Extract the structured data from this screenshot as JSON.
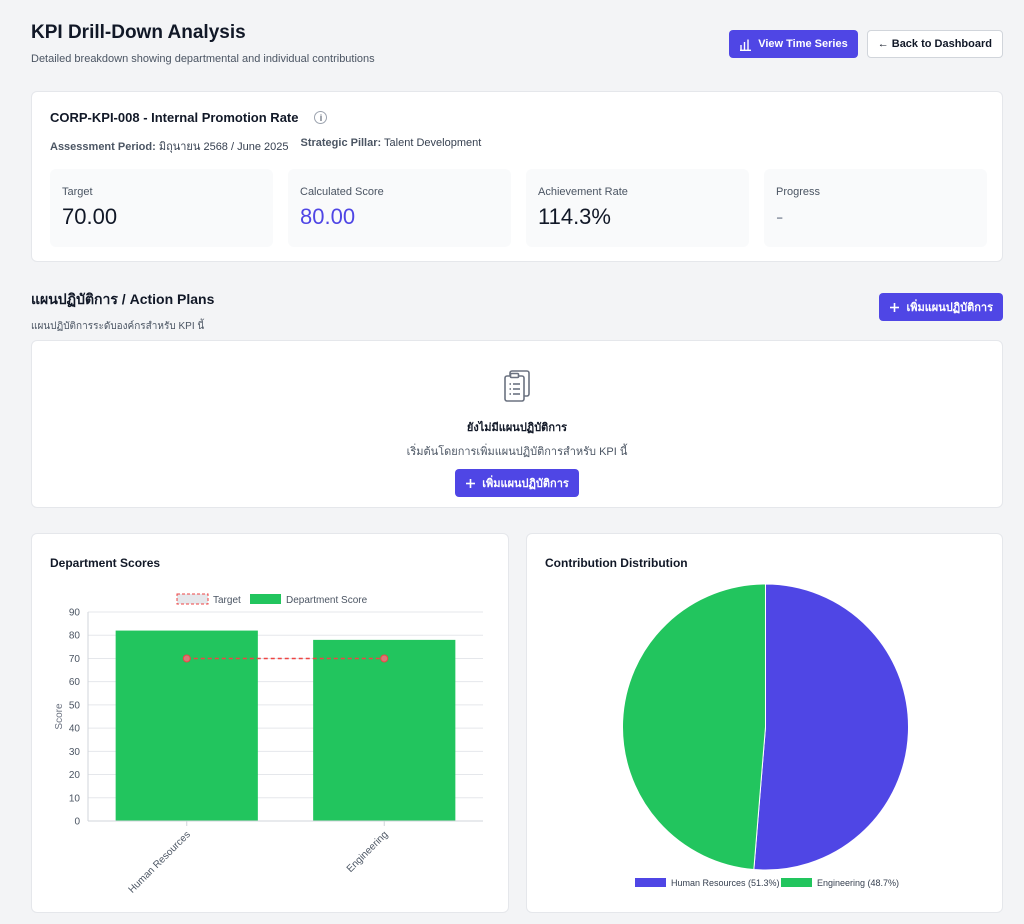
{
  "header": {
    "title": "KPI Drill-Down Analysis",
    "subtitle": "Detailed breakdown showing departmental and individual contributions",
    "view_time_series": "View Time Series",
    "back_to_dashboard": "← Back to Dashboard"
  },
  "kpi": {
    "title": "CORP-KPI-008 - Internal Promotion Rate",
    "period_label": "Assessment Period:",
    "period_value": "มิถุนายน 2568 / June 2025",
    "pillar_label": "Strategic Pillar:",
    "pillar_value": "Talent Development",
    "metrics": [
      {
        "label": "Target",
        "value": "70.00"
      },
      {
        "label": "Calculated Score",
        "value": "80.00"
      },
      {
        "label": "Achievement Rate",
        "value": "114.3%"
      },
      {
        "label": "Progress",
        "value": "-"
      }
    ]
  },
  "action_plans": {
    "title": "แผนปฏิบัติการ / Action Plans",
    "subtitle": "แผนปฏิบัติการระดับองค์กรสำหรับ KPI นี้",
    "add_button": "เพิ่มแผนปฏิบัติการ",
    "empty_title": "ยังไม่มีแผนปฏิบัติการ",
    "empty_sub": "เริ่มต้นโดยการเพิ่มแผนปฏิบัติการสำหรับ KPI นี้",
    "empty_button": "เพิ่มแผนปฏิบัติการ"
  },
  "icons": {
    "time_series": "bar-chart-icon",
    "add": "plus-icon",
    "info": "info-icon",
    "empty": "clipboard-list-icon"
  },
  "colors": {
    "accent": "#4f46e5",
    "green": "#22c55e",
    "target": "#ef4444"
  },
  "chart_data": [
    {
      "type": "bar",
      "title": "Department Scores",
      "categories": [
        "Human Resources",
        "Engineering"
      ],
      "series": [
        {
          "name": "Target",
          "kind": "line",
          "values": [
            70,
            70
          ],
          "color": "#ef4444"
        },
        {
          "name": "Department Score",
          "kind": "bar",
          "values": [
            82,
            78
          ],
          "color": "#22c55e"
        }
      ],
      "ylabel": "Score",
      "ylim": [
        0,
        90
      ],
      "yticks": [
        0,
        10,
        20,
        30,
        40,
        50,
        60,
        70,
        80,
        90
      ],
      "grid": true,
      "legend": "top"
    },
    {
      "type": "pie",
      "title": "Contribution Distribution",
      "labels": [
        "Human Resources (51.3%)",
        "Engineering (48.7%)"
      ],
      "values": [
        51.3,
        48.7
      ],
      "colors": [
        "#4f46e5",
        "#22c55e"
      ],
      "legend": "bottom"
    }
  ]
}
